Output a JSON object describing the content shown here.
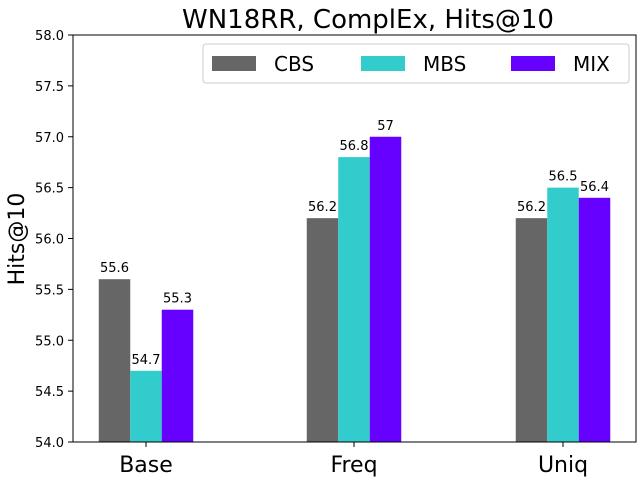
{
  "chart_data": {
    "type": "bar",
    "title": "WN18RR, ComplEx, Hits@10",
    "xlabel": "",
    "ylabel": "Hits@10",
    "categories": [
      "Base",
      "Freq",
      "Uniq"
    ],
    "ylim": [
      54.0,
      58.0
    ],
    "yticks": [
      54.0,
      54.5,
      55.0,
      55.5,
      56.0,
      56.5,
      57.0,
      57.5,
      58.0
    ],
    "ytick_labels": [
      "54.0",
      "54.5",
      "55.0",
      "55.5",
      "56.0",
      "56.5",
      "57.0",
      "57.5",
      "58.0"
    ],
    "series": [
      {
        "name": "CBS",
        "color": "#666666",
        "values": [
          55.6,
          56.2,
          56.2
        ],
        "labels": [
          "55.6",
          "56.2",
          "56.2"
        ]
      },
      {
        "name": "MBS",
        "color": "#33cccc",
        "values": [
          54.7,
          56.8,
          56.5
        ],
        "labels": [
          "54.7",
          "56.8",
          "56.5"
        ]
      },
      {
        "name": "MIX",
        "color": "#6600ff",
        "values": [
          55.3,
          57.0,
          56.4
        ],
        "labels": [
          "55.3",
          "57",
          "56.4"
        ]
      }
    ],
    "legend_position": "top-right",
    "grid": false
  }
}
